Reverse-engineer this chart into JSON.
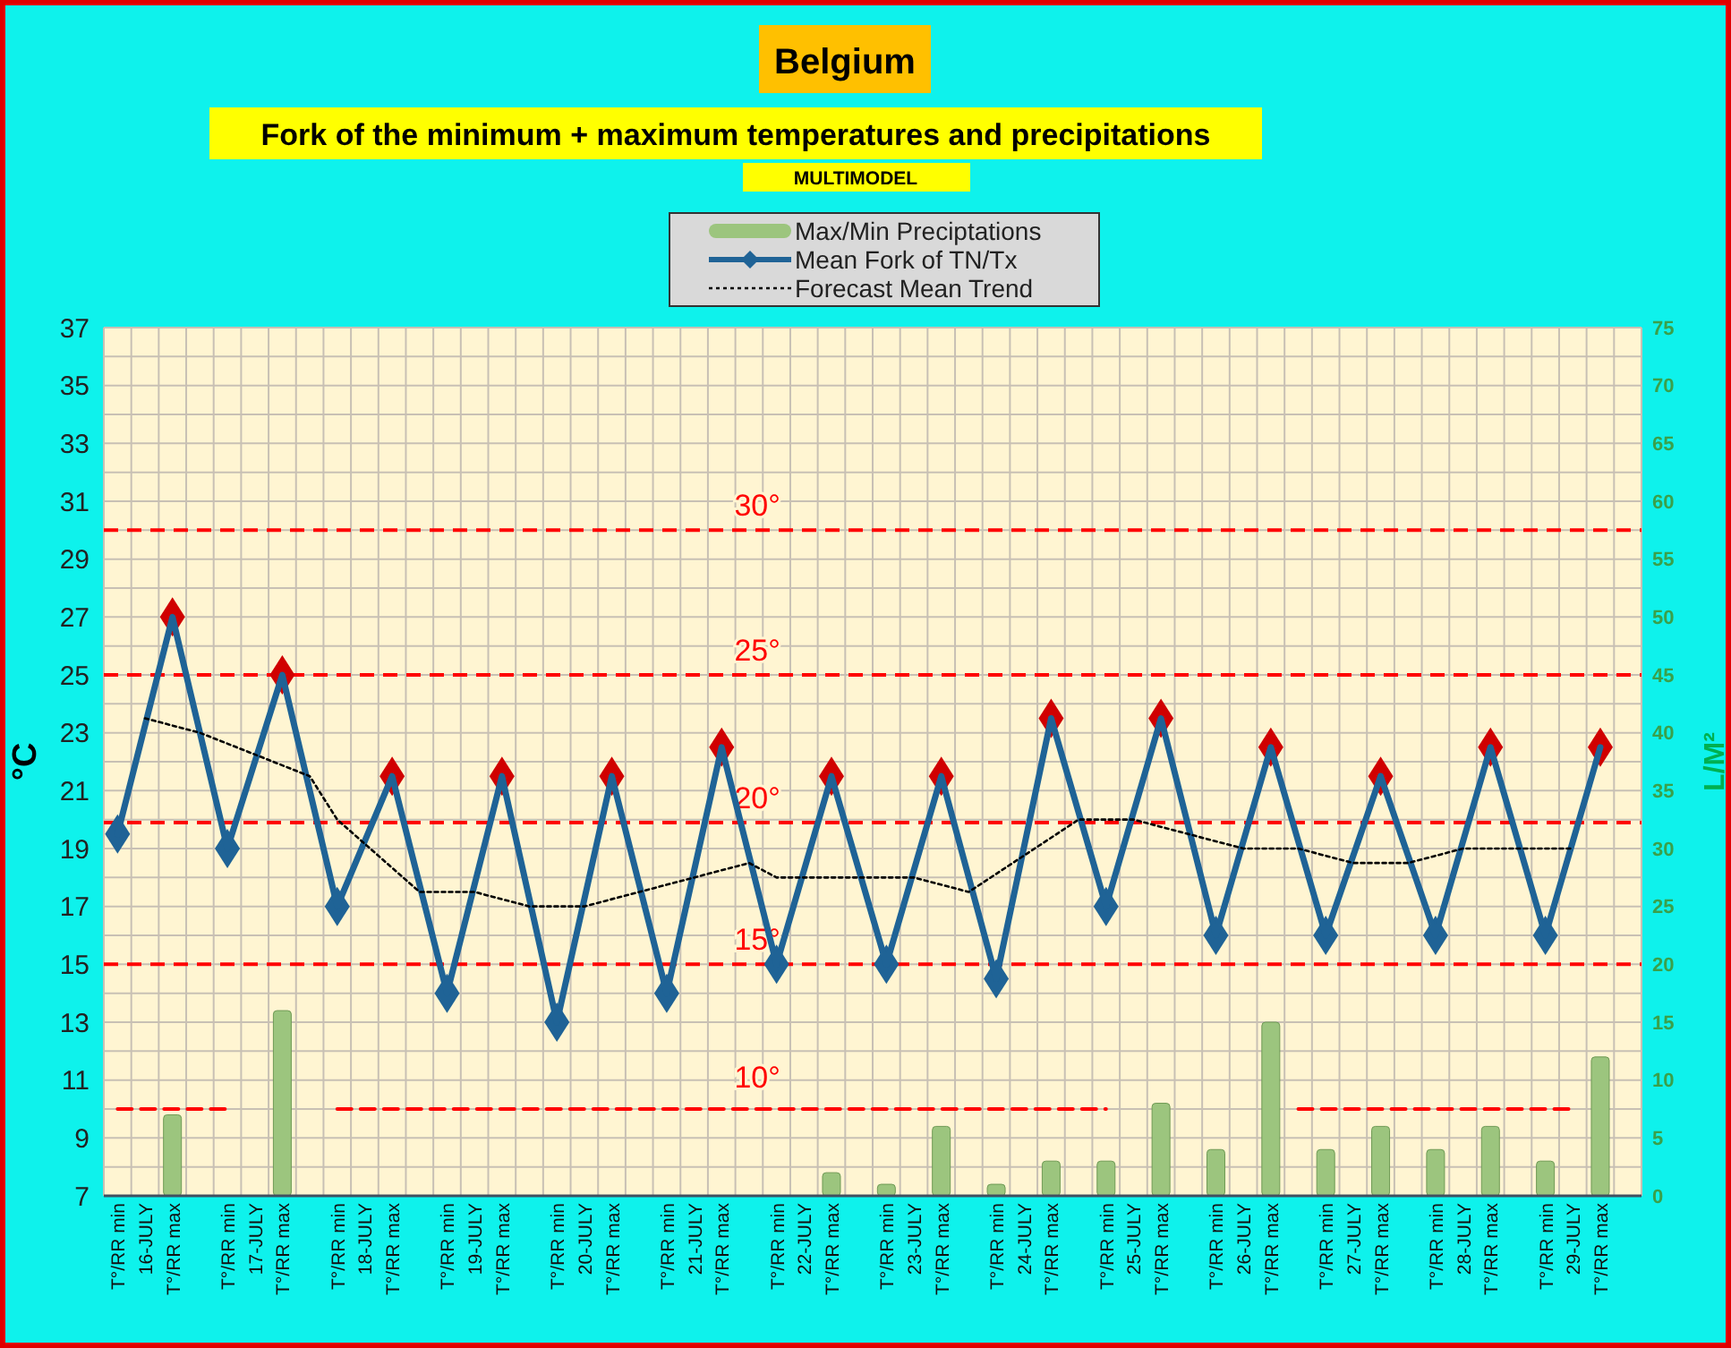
{
  "chart_data": {
    "type": "line",
    "title": "Belgium",
    "subtitle": "Fork of the minimum + maximum temperatures and precipitations",
    "annotations": [
      "MULTIMODEL",
      {
        "text": "10°",
        "y": 10
      }
    ],
    "ylabel": "°C",
    "y2label": "L/M²",
    "categories": [
      "T°/RR min",
      "16-JULY",
      "T°/RR max",
      null,
      "T°/RR min",
      "17-JULY",
      "T°/RR max",
      null,
      "T°/RR min",
      "18-JULY",
      "T°/RR max",
      null,
      "T°/RR min",
      "19-JULY",
      "T°/RR max",
      null,
      "T°/RR min",
      "20-JULY",
      "T°/RR max",
      null,
      "T°/RR min",
      "21-JULY",
      "T°/RR max",
      null,
      "T°/RR min",
      "22-JULY",
      "T°/RR max",
      null,
      "T°/RR min",
      "23-JULY",
      "T°/RR max",
      null,
      "T°/RR min",
      "24-JULY",
      "T°/RR max",
      null,
      "T°/RR min",
      "25-JULY",
      "T°/RR max",
      null,
      "T°/RR min",
      "26-JULY",
      "T°/RR max",
      null,
      "T°/RR min",
      "27-JULY",
      "T°/RR max",
      null,
      "T°/RR min",
      "28-JULY",
      "T°/RR max",
      null,
      "T°/RR min",
      "29-JULY",
      "T°/RR max",
      null
    ],
    "series": [
      {
        "type": "bar",
        "axis": "y2",
        "name": "Max/Min Preciptations",
        "color": "#9cc57e",
        "values": [
          null,
          null,
          7,
          null,
          null,
          null,
          16,
          null,
          null,
          null,
          null,
          null,
          null,
          null,
          null,
          null,
          null,
          null,
          null,
          null,
          null,
          null,
          null,
          null,
          null,
          null,
          2,
          null,
          1,
          null,
          6,
          null,
          1,
          null,
          3,
          null,
          3,
          null,
          8,
          null,
          4,
          null,
          15,
          null,
          4,
          null,
          6,
          null,
          4,
          null,
          6,
          null,
          3,
          null,
          12,
          null
        ]
      },
      {
        "name": "Mean Fork of TN/Tx",
        "color": "#1f6396",
        "marker": "diamond",
        "line_style": "solid",
        "values": [
          19.5,
          null,
          27,
          null,
          19,
          null,
          25,
          null,
          17,
          null,
          21.5,
          null,
          14,
          null,
          21.5,
          null,
          13,
          null,
          21.5,
          null,
          14,
          null,
          22.5,
          null,
          15,
          null,
          21.5,
          null,
          15,
          null,
          21.5,
          null,
          14.5,
          null,
          23.5,
          null,
          17,
          null,
          23.5,
          null,
          16,
          null,
          22.5,
          null,
          16,
          null,
          21.5,
          null,
          16,
          null,
          22.5,
          null,
          16,
          null,
          22.5,
          null
        ],
        "colors": [
          "#1f6396",
          null,
          "#d00000",
          null,
          "#1f6396",
          null,
          "#d00000",
          null,
          "#1f6396",
          null,
          "#d00000",
          null,
          "#1f6396",
          null,
          "#d00000",
          null,
          "#1f6396",
          null,
          "#d00000",
          null,
          "#1f6396",
          null,
          "#d00000",
          null,
          "#1f6396",
          null,
          "#d00000",
          null,
          "#1f6396",
          null,
          "#d00000",
          null,
          "#1f6396",
          null,
          "#d00000",
          null,
          "#1f6396",
          null,
          "#d00000",
          null,
          "#1f6396",
          null,
          "#d00000",
          null,
          "#1f6396",
          null,
          "#d00000",
          null,
          "#1f6396",
          null,
          "#d00000",
          null,
          "#1f6396",
          null,
          "#d00000",
          null
        ]
      },
      {
        "name": "Forecast Mean Trend",
        "color": "#000000",
        "line_style": "dotted",
        "values": [
          null,
          23.5,
          null,
          23,
          null,
          null,
          null,
          21.5,
          20,
          null,
          null,
          17.5,
          null,
          17.5,
          null,
          17,
          null,
          17,
          null,
          null,
          null,
          null,
          null,
          18.5,
          18,
          null,
          null,
          null,
          null,
          18,
          null,
          17.5,
          null,
          null,
          null,
          20,
          null,
          20,
          null,
          null,
          null,
          19,
          null,
          19,
          null,
          18.5,
          null,
          18.5,
          null,
          19,
          null,
          null,
          null,
          19,
          null,
          null
        ]
      },
      {
        "type": "line",
        "color": "#ff0000",
        "line_style": "dashed",
        "values": [
          10,
          10,
          10,
          10,
          10,
          null,
          null,
          null,
          10,
          10,
          10,
          10,
          10,
          10,
          10,
          10,
          10,
          10,
          10,
          10,
          10,
          10,
          10,
          10,
          10,
          10,
          10,
          10,
          10,
          10,
          10,
          10,
          10,
          10,
          10,
          10,
          10,
          null,
          null,
          null,
          null,
          null,
          null,
          10,
          10,
          10,
          10,
          10,
          10,
          10,
          10,
          10,
          10,
          10,
          null,
          null
        ]
      }
    ],
    "ylim": [
      7,
      37
    ],
    "yticks": [
      7,
      {
        "value": 8,
        "label": null
      },
      9,
      {
        "value": 10,
        "label": null
      },
      11,
      {
        "value": 12,
        "label": null
      },
      13,
      {
        "value": 14,
        "label": null
      },
      15,
      {
        "value": 16,
        "label": null
      },
      17,
      {
        "value": 18,
        "label": null
      },
      19,
      {
        "value": 20,
        "label": null
      },
      21,
      {
        "value": 22,
        "label": null
      },
      23,
      {
        "value": 24,
        "label": null
      },
      25,
      {
        "value": 26,
        "label": null
      },
      27,
      {
        "value": 28,
        "label": null
      },
      29,
      {
        "value": 30,
        "label": null
      },
      31,
      {
        "value": 32,
        "label": null
      },
      33,
      {
        "value": 34,
        "label": null
      },
      35,
      {
        "value": 36,
        "label": null
      },
      37
    ],
    "y2lim": [
      0,
      75
    ],
    "y2ticks": [
      0,
      5,
      10,
      15,
      20,
      25,
      30,
      35,
      40,
      45,
      50,
      55,
      60,
      65,
      70,
      75
    ],
    "grid": true,
    "legend": "top",
    "ref_lines": [
      {
        "axis": "y",
        "value": 30,
        "label": "30°",
        "color": "#ff0000",
        "line_style": "dashed"
      },
      {
        "axis": "y",
        "value": 25,
        "label": "25°",
        "color": "#ff0000",
        "line_style": "dashed"
      },
      {
        "axis": "y",
        "value": 19.9,
        "label": "20°",
        "color": "#ff0000",
        "line_style": "dashed"
      },
      {
        "axis": "y",
        "value": 15,
        "label": "15°",
        "color": "#ff0000",
        "line_style": "dashed"
      }
    ]
  }
}
